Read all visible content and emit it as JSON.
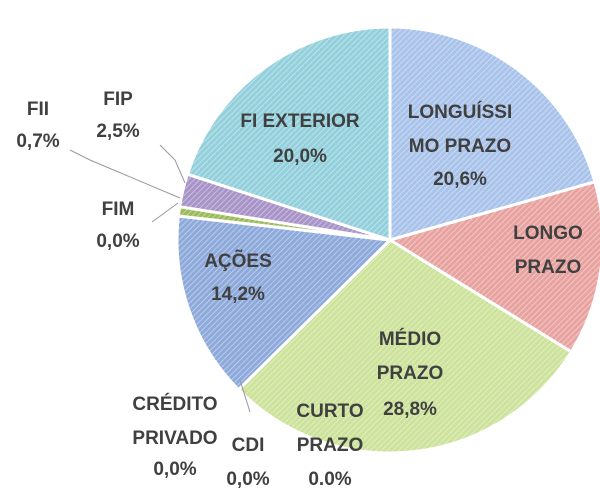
{
  "chart_data": {
    "type": "pie",
    "categories": [
      "LONGUÍSSI\nMO PRAZO",
      "LONGO\nPRAZO",
      "MÉDIO\nPRAZO",
      "CURTO\nPRAZO",
      "CDI",
      "CRÉDITO\nPRIVADO",
      "AÇÕES",
      "FIM",
      "FII",
      "FIP",
      "FI EXTERIOR"
    ],
    "values": [
      20.6,
      13.2,
      28.8,
      0,
      0,
      0,
      14.2,
      0,
      0.7,
      2.5,
      20.0
    ],
    "value_labels": [
      "20,6%",
      null,
      "28,8%",
      "0.0%",
      "0,0%",
      "0,0%",
      "14,2%",
      "0,0%",
      "0,7%",
      "2,5%",
      "20,0%"
    ],
    "colors": [
      "#a9c3ea",
      "#e8a3a0",
      "#cde29b",
      "#cde29b",
      "#cde29b",
      "#8eaadb",
      "#8eaadb",
      "#9bbb59",
      "#9bbb59",
      "#a894c8",
      "#93d0dc"
    ]
  }
}
